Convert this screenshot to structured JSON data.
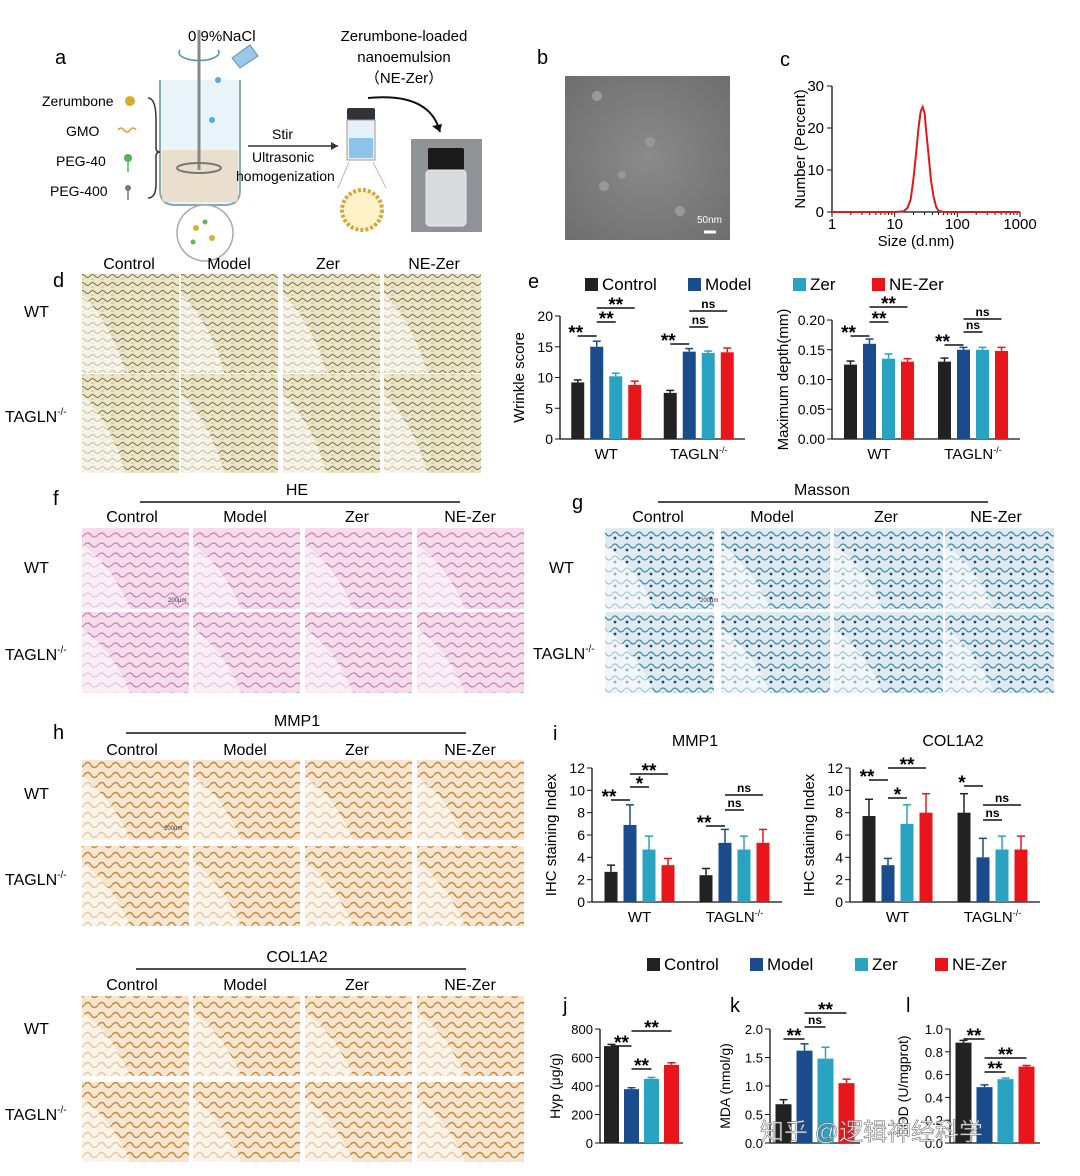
{
  "panel_letters": {
    "a": "a",
    "b": "b",
    "c": "c",
    "d": "d",
    "e": "e",
    "f": "f",
    "g": "g",
    "h": "h",
    "i": "i",
    "j": "j",
    "k": "k",
    "l": "l"
  },
  "groups": [
    "Control",
    "Model",
    "Zer",
    "NE-Zer"
  ],
  "genotypes": [
    "WT",
    "TAGLN-/-"
  ],
  "genotype_wt": "WT",
  "genotype_ko_base": "TAGLN",
  "genotype_ko_sup": "-/-",
  "colors": {
    "control": "#222222",
    "model": "#1a4b8c",
    "zer": "#2aa3c2",
    "nezer": "#e8161b",
    "red_curve": "#e0191b"
  },
  "panel_a": {
    "nacl": "0.9%NaCl",
    "title_line1": "Zerumbone-loaded",
    "title_line2": "nanoemulsion",
    "title_line3": "（NE-Zer）",
    "ingredients": [
      "Zerumbone",
      "GMO",
      "PEG-40",
      "PEG-400"
    ],
    "process_line1": "Stir",
    "process_line2": "Ultrasonic",
    "process_line3": "homogenization"
  },
  "panel_b": {
    "scale_label": "50nm"
  },
  "panel_f": {
    "title": "HE",
    "scale_label": "200μm"
  },
  "panel_g": {
    "title": "Masson",
    "scale_label": "200μm"
  },
  "panel_h": {
    "title_top": "MMP1",
    "title_bottom": "COL1A2",
    "scale_label": "200μm"
  },
  "legend_labels": [
    "Control",
    "Model",
    "Zer",
    "NE-Zer"
  ],
  "sig": {
    "double": "**",
    "single": "*",
    "ns": "ns"
  },
  "chart_data": [
    {
      "id": "c",
      "type": "line",
      "title": "",
      "xlabel": "Size (d.nm)",
      "ylabel": "Number (Percent)",
      "xscale": "log",
      "xlim": [
        1,
        1000
      ],
      "ylim": [
        0,
        30
      ],
      "xticks": [
        "1",
        "10",
        "100",
        "1000"
      ],
      "yticks": [
        "0",
        "10",
        "20",
        "30"
      ],
      "series": [
        {
          "name": "size distribution",
          "x": [
            1,
            5,
            10,
            14,
            16,
            18,
            20,
            22,
            24,
            26,
            28,
            30,
            32,
            35,
            38,
            42,
            46,
            50,
            60,
            80,
            100,
            1000
          ],
          "y": [
            0,
            0,
            0,
            0.2,
            1,
            3,
            8,
            14,
            20,
            24,
            25,
            23.5,
            19,
            13,
            7.5,
            3.5,
            1.2,
            0.3,
            0,
            0,
            0,
            0
          ]
        }
      ]
    },
    {
      "id": "e1",
      "type": "bar",
      "ylabel": "Wrinkle score",
      "ylim": [
        0,
        20
      ],
      "yticks": [
        "0",
        "5",
        "10",
        "15",
        "20"
      ],
      "categories": [
        "WT",
        "TAGLN-/-"
      ],
      "series": [
        {
          "name": "Control",
          "values": [
            9.2,
            7.5
          ],
          "errors": [
            0.4,
            0.4
          ]
        },
        {
          "name": "Model",
          "values": [
            15.0,
            14.2
          ],
          "errors": [
            0.9,
            0.5
          ]
        },
        {
          "name": "Zer",
          "values": [
            10.2,
            14.0
          ],
          "errors": [
            0.5,
            0.3
          ]
        },
        {
          "name": "NE-Zer",
          "values": [
            8.8,
            14.1
          ],
          "errors": [
            0.6,
            0.7
          ]
        }
      ]
    },
    {
      "id": "e2",
      "type": "bar",
      "ylabel": "Maximum depth(mm)",
      "ylim": [
        0,
        0.2
      ],
      "yticks": [
        "0.00",
        "0.05",
        "0.10",
        "0.15",
        "0.20"
      ],
      "categories": [
        "WT",
        "TAGLN-/-"
      ],
      "series": [
        {
          "name": "Control",
          "values": [
            0.125,
            0.13
          ],
          "errors": [
            0.006,
            0.006
          ]
        },
        {
          "name": "Model",
          "values": [
            0.16,
            0.15
          ],
          "errors": [
            0.008,
            0.004
          ]
        },
        {
          "name": "Zer",
          "values": [
            0.135,
            0.15
          ],
          "errors": [
            0.008,
            0.004
          ]
        },
        {
          "name": "NE-Zer",
          "values": [
            0.13,
            0.148
          ],
          "errors": [
            0.005,
            0.006
          ]
        }
      ]
    },
    {
      "id": "i1",
      "type": "bar",
      "title": "MMP1",
      "ylabel": "IHC staining Index",
      "ylim": [
        0,
        12
      ],
      "yticks": [
        "0",
        "2",
        "4",
        "6",
        "8",
        "10",
        "12"
      ],
      "categories": [
        "WT",
        "TAGLN-/-"
      ],
      "series": [
        {
          "name": "Control",
          "values": [
            2.7,
            2.4
          ],
          "errors": [
            0.6,
            0.6
          ]
        },
        {
          "name": "Model",
          "values": [
            6.9,
            5.3
          ],
          "errors": [
            1.8,
            1.2
          ]
        },
        {
          "name": "Zer",
          "values": [
            4.7,
            4.7
          ],
          "errors": [
            1.2,
            1.2
          ]
        },
        {
          "name": "NE-Zer",
          "values": [
            3.3,
            5.3
          ],
          "errors": [
            0.6,
            1.2
          ]
        }
      ]
    },
    {
      "id": "i2",
      "type": "bar",
      "title": "COL1A2",
      "ylabel": "IHC staining Index",
      "ylim": [
        0,
        12
      ],
      "yticks": [
        "0",
        "2",
        "4",
        "6",
        "8",
        "10",
        "12"
      ],
      "categories": [
        "WT",
        "TAGLN-/-"
      ],
      "series": [
        {
          "name": "Control",
          "values": [
            7.7,
            8.0
          ],
          "errors": [
            1.5,
            1.7
          ]
        },
        {
          "name": "Model",
          "values": [
            3.3,
            4.0
          ],
          "errors": [
            0.6,
            1.7
          ]
        },
        {
          "name": "Zer",
          "values": [
            7.0,
            4.7
          ],
          "errors": [
            1.7,
            1.2
          ]
        },
        {
          "name": "NE-Zer",
          "values": [
            8.0,
            4.7
          ],
          "errors": [
            1.7,
            1.2
          ]
        }
      ]
    },
    {
      "id": "j",
      "type": "bar",
      "ylabel": "Hyp (μg/g)",
      "ylim": [
        0,
        800
      ],
      "yticks": [
        "0",
        "200",
        "400",
        "600",
        "800"
      ],
      "categories": [
        ""
      ],
      "series": [
        {
          "name": "Control",
          "values": [
            680
          ],
          "errors": [
            12
          ]
        },
        {
          "name": "Model",
          "values": [
            378
          ],
          "errors": [
            10
          ]
        },
        {
          "name": "Zer",
          "values": [
            450
          ],
          "errors": [
            10
          ]
        },
        {
          "name": "NE-Zer",
          "values": [
            548
          ],
          "errors": [
            15
          ]
        }
      ]
    },
    {
      "id": "k",
      "type": "bar",
      "ylabel": "MDA (nmol/g)",
      "ylim": [
        0,
        2.0
      ],
      "yticks": [
        "0.0",
        "0.5",
        "1.0",
        "1.5",
        "2.0"
      ],
      "categories": [
        ""
      ],
      "series": [
        {
          "name": "Control",
          "values": [
            0.68
          ],
          "errors": [
            0.08
          ]
        },
        {
          "name": "Model",
          "values": [
            1.62
          ],
          "errors": [
            0.12
          ]
        },
        {
          "name": "Zer",
          "values": [
            1.48
          ],
          "errors": [
            0.2
          ]
        },
        {
          "name": "NE-Zer",
          "values": [
            1.05
          ],
          "errors": [
            0.07
          ]
        }
      ]
    },
    {
      "id": "l",
      "type": "bar",
      "ylabel": "SOD (U/mgprot)",
      "ylim": [
        0,
        1.0
      ],
      "yticks": [
        "0.0",
        "0.2",
        "0.4",
        "0.6",
        "0.8",
        "1.0"
      ],
      "categories": [
        ""
      ],
      "series": [
        {
          "name": "Control",
          "values": [
            0.88
          ],
          "errors": [
            0.02
          ]
        },
        {
          "name": "Model",
          "values": [
            0.49
          ],
          "errors": [
            0.02
          ]
        },
        {
          "name": "Zer",
          "values": [
            0.56
          ],
          "errors": [
            0.01
          ]
        },
        {
          "name": "NE-Zer",
          "values": [
            0.67
          ],
          "errors": [
            0.01
          ]
        }
      ]
    }
  ],
  "watermark": "知乎 @逻辑神经科学"
}
